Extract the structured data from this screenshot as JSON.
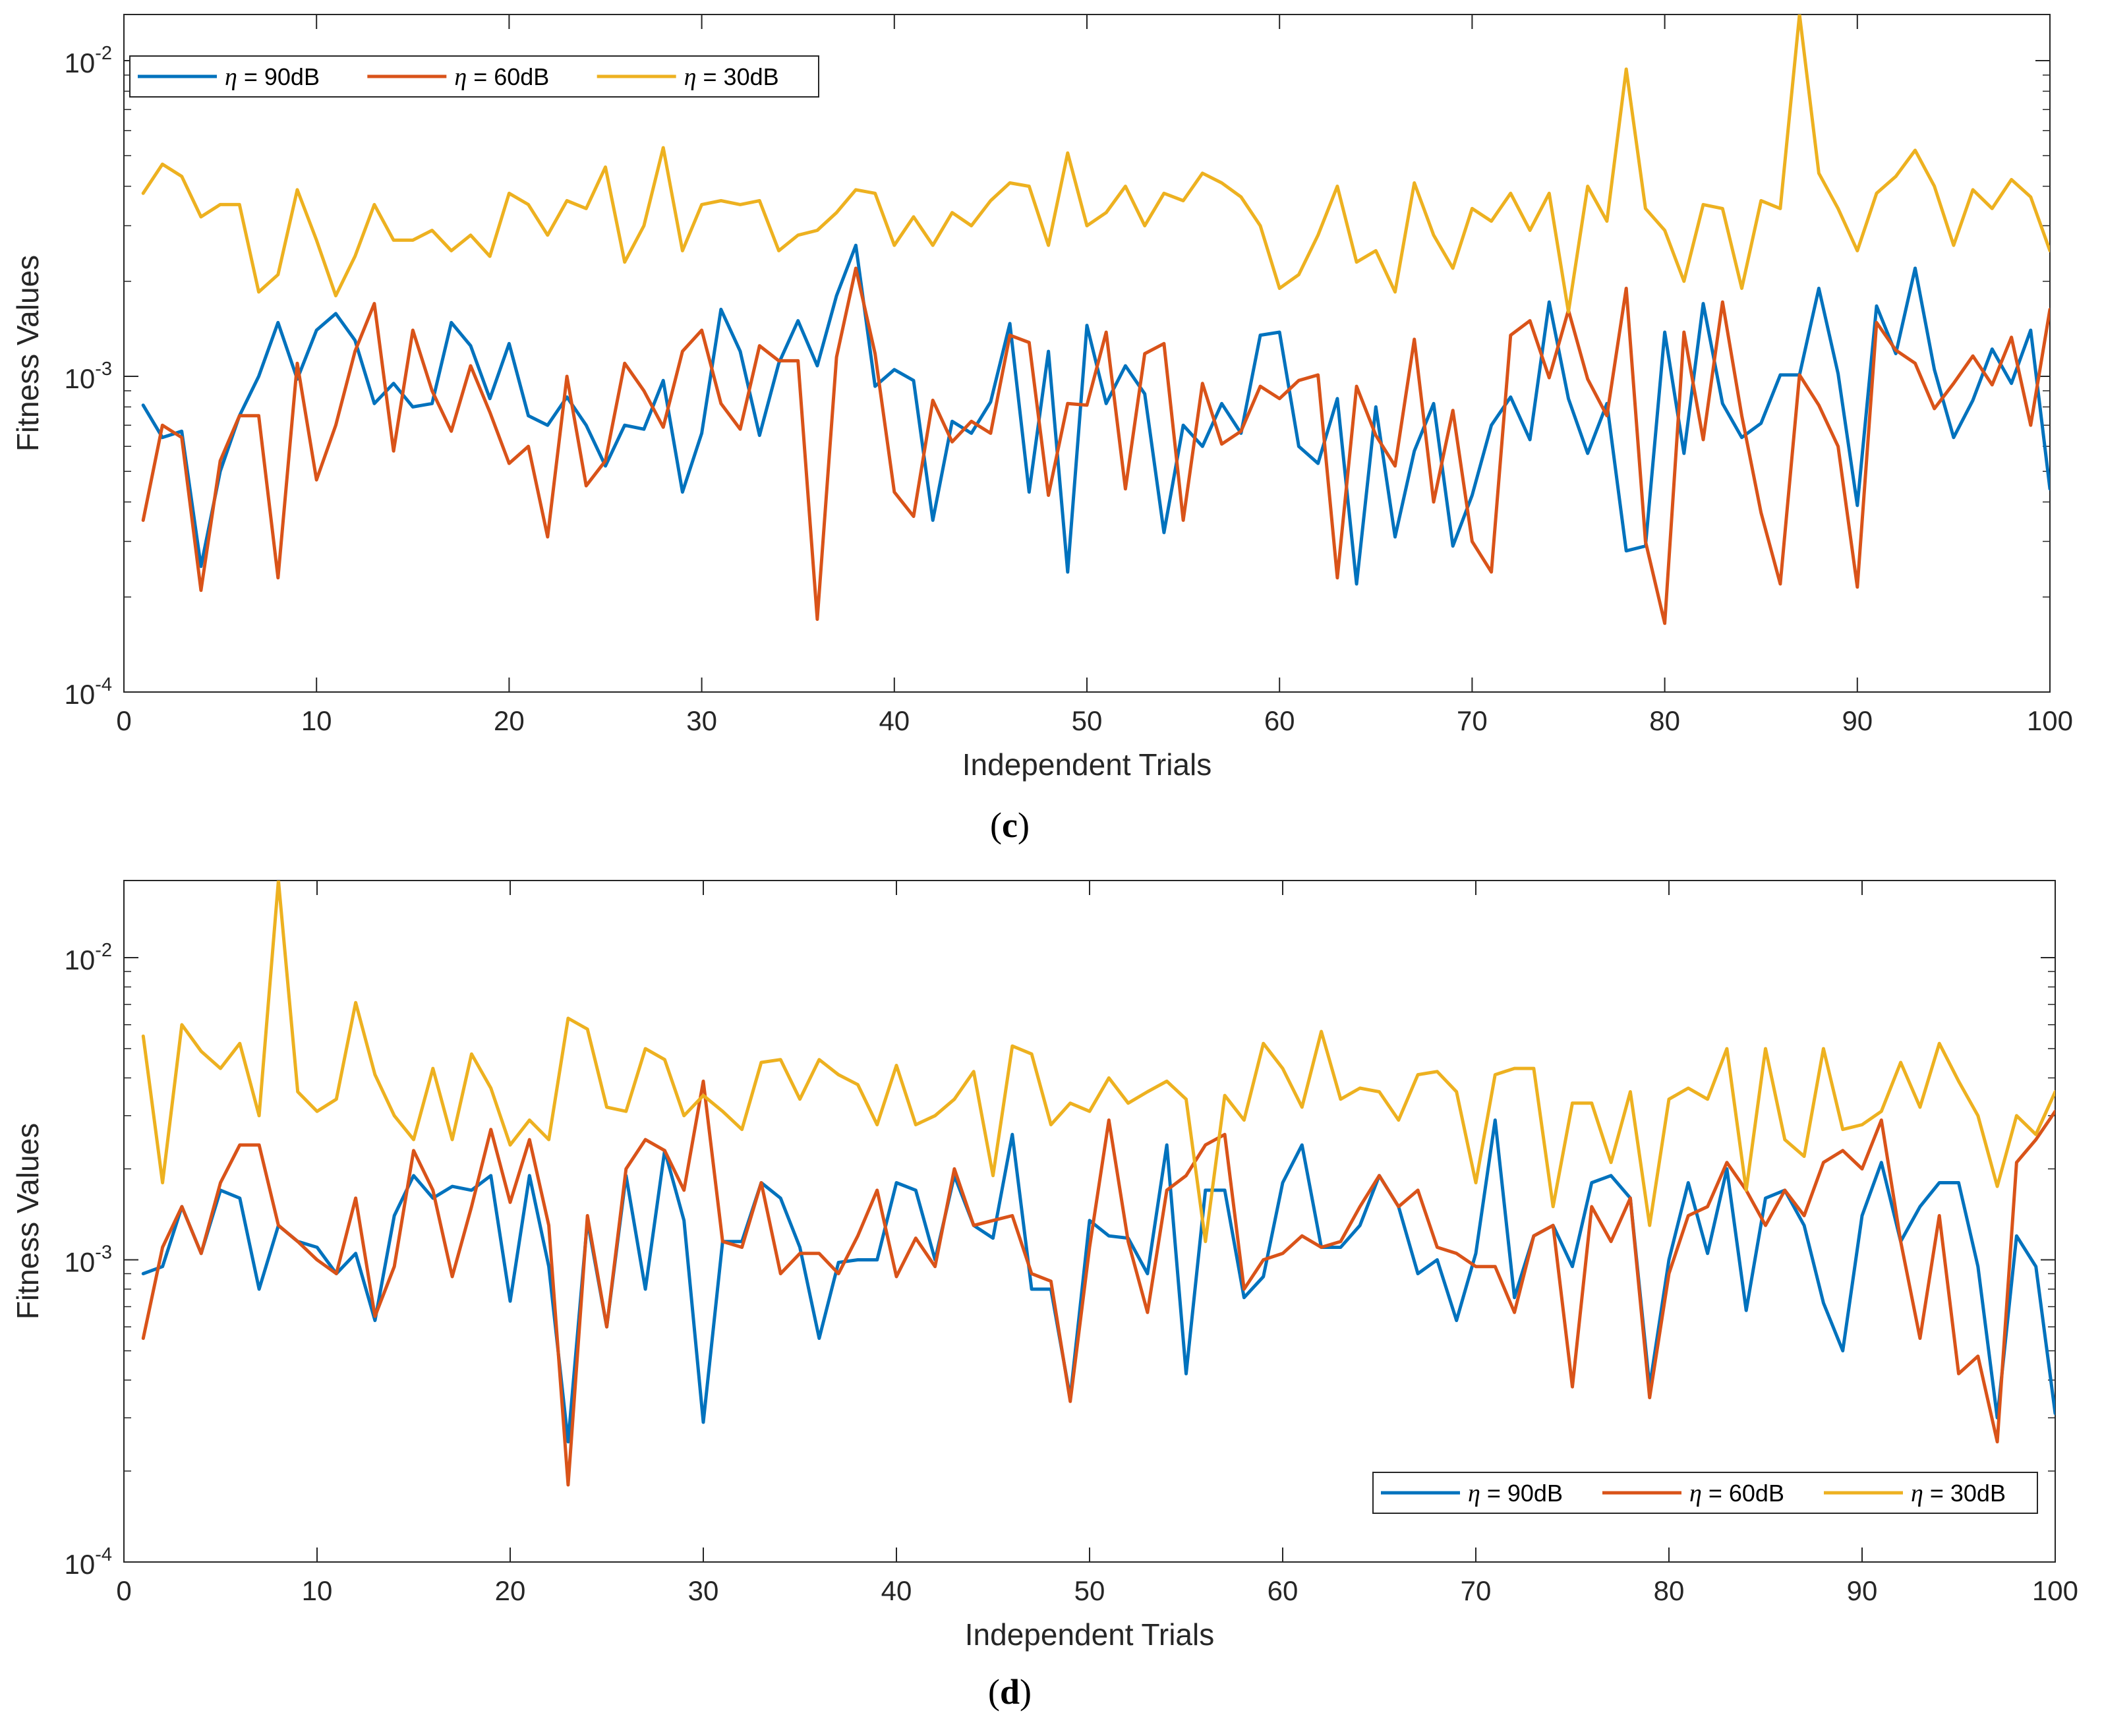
{
  "chart_data": [
    {
      "type": "line",
      "caption_letter": "c",
      "xlabel": "Independent Trials",
      "ylabel": "Fitness Values",
      "xlim": [
        0,
        100
      ],
      "xticks": [
        0,
        10,
        20,
        30,
        40,
        50,
        60,
        70,
        80,
        90,
        100
      ],
      "yscale": "log",
      "ylim": [
        0.0001,
        0.014
      ],
      "yticks": [
        {
          "base": "10",
          "exp": "-4",
          "value": 0.0001
        },
        {
          "base": "10",
          "exp": "-3",
          "value": 0.001
        },
        {
          "base": "10",
          "exp": "-2",
          "value": 0.01
        }
      ],
      "grid": false,
      "legend_position": "top-left",
      "series": [
        {
          "name": "η = 90dB",
          "symbol": "η",
          "label": " = 90dB",
          "color": "#0072BD",
          "values": [
            0.00081,
            0.00064,
            0.00067,
            0.00025,
            0.0005,
            0.00075,
            0.001,
            0.00148,
            0.00098,
            0.0014,
            0.00158,
            0.0013,
            0.00082,
            0.00095,
            0.0008,
            0.00082,
            0.00148,
            0.00125,
            0.00085,
            0.00127,
            0.00075,
            0.0007,
            0.00086,
            0.0007,
            0.00052,
            0.0007,
            0.00068,
            0.00097,
            0.00043,
            0.00066,
            0.00163,
            0.0012,
            0.00065,
            0.0011,
            0.0015,
            0.00108,
            0.0018,
            0.0026,
            0.00093,
            0.00105,
            0.00097,
            0.00035,
            0.00072,
            0.00066,
            0.00083,
            0.00147,
            0.00043,
            0.0012,
            0.00024,
            0.00145,
            0.00082,
            0.00108,
            0.00088,
            0.00032,
            0.0007,
            0.0006,
            0.00082,
            0.00066,
            0.00135,
            0.00138,
            0.0006,
            0.00053,
            0.00085,
            0.00022,
            0.0008,
            0.00031,
            0.00058,
            0.00082,
            0.00029,
            0.00042,
            0.0007,
            0.00086,
            0.00063,
            0.00172,
            0.00085,
            0.00057,
            0.00082,
            0.00028,
            0.00029,
            0.00138,
            0.00057,
            0.0017,
            0.00082,
            0.00064,
            0.00071,
            0.00101,
            0.00101,
            0.0019,
            0.00102,
            0.00039,
            0.00167,
            0.00118,
            0.0022,
            0.00105,
            0.00064,
            0.00084,
            0.00122,
            0.00095,
            0.0014,
            0.00044
          ]
        },
        {
          "name": "η = 60dB",
          "symbol": "η",
          "label": " = 60dB",
          "color": "#D95319",
          "values": [
            0.00035,
            0.0007,
            0.00064,
            0.00021,
            0.00054,
            0.00075,
            0.00075,
            0.00023,
            0.0011,
            0.00047,
            0.0007,
            0.0012,
            0.0017,
            0.00058,
            0.0014,
            0.0009,
            0.00067,
            0.00108,
            0.00077,
            0.00053,
            0.0006,
            0.00031,
            0.001,
            0.00045,
            0.00054,
            0.0011,
            0.0009,
            0.00069,
            0.0012,
            0.0014,
            0.00082,
            0.00068,
            0.00125,
            0.00112,
            0.00112,
            0.00017,
            0.00115,
            0.0022,
            0.00118,
            0.00043,
            0.00036,
            0.00084,
            0.00062,
            0.00072,
            0.00066,
            0.00135,
            0.00128,
            0.00042,
            0.00082,
            0.00081,
            0.00138,
            0.00044,
            0.00118,
            0.00127,
            0.00035,
            0.00095,
            0.00061,
            0.00067,
            0.00093,
            0.00085,
            0.00097,
            0.00101,
            0.00023,
            0.00093,
            0.00065,
            0.00052,
            0.00131,
            0.0004,
            0.00078,
            0.0003,
            0.00024,
            0.00135,
            0.0015,
            0.00099,
            0.00162,
            0.00098,
            0.00075,
            0.0019,
            0.0003,
            0.000165,
            0.00138,
            0.00063,
            0.00172,
            0.00075,
            0.00037,
            0.00022,
            0.00101,
            0.00081,
            0.0006,
            0.000215,
            0.00148,
            0.00121,
            0.0011,
            0.00079,
            0.00095,
            0.00116,
            0.00094,
            0.00133,
            0.0007,
            0.00163
          ]
        },
        {
          "name": "η = 30dB",
          "symbol": "η",
          "label": " = 30dB",
          "color": "#EDB120",
          "values": [
            0.0038,
            0.0047,
            0.0043,
            0.0032,
            0.0035,
            0.0035,
            0.00185,
            0.0021,
            0.0039,
            0.0027,
            0.0018,
            0.0024,
            0.0035,
            0.0027,
            0.0027,
            0.0029,
            0.0025,
            0.0028,
            0.0024,
            0.0038,
            0.0035,
            0.0028,
            0.0036,
            0.0034,
            0.0046,
            0.0023,
            0.003,
            0.0053,
            0.0025,
            0.0035,
            0.0036,
            0.0035,
            0.0036,
            0.0025,
            0.0028,
            0.0029,
            0.0033,
            0.0039,
            0.0038,
            0.0026,
            0.0032,
            0.0026,
            0.0033,
            0.003,
            0.0036,
            0.0041,
            0.004,
            0.0026,
            0.0051,
            0.003,
            0.0033,
            0.004,
            0.003,
            0.0038,
            0.0036,
            0.0044,
            0.0041,
            0.0037,
            0.003,
            0.0019,
            0.0021,
            0.0028,
            0.004,
            0.0023,
            0.0025,
            0.00185,
            0.0041,
            0.0028,
            0.0022,
            0.0034,
            0.0031,
            0.0038,
            0.0029,
            0.0038,
            0.0016,
            0.004,
            0.0031,
            0.0094,
            0.0034,
            0.0029,
            0.002,
            0.0035,
            0.0034,
            0.0019,
            0.0036,
            0.0034,
            0.014,
            0.0044,
            0.0034,
            0.0025,
            0.0038,
            0.0043,
            0.0052,
            0.004,
            0.0026,
            0.0039,
            0.0034,
            0.0042,
            0.0037,
            0.0025
          ]
        }
      ]
    },
    {
      "type": "line",
      "caption_letter": "d",
      "xlabel": "Independent Trials",
      "ylabel": "Fitness Values",
      "xlim": [
        0,
        100
      ],
      "xticks": [
        0,
        10,
        20,
        30,
        40,
        50,
        60,
        70,
        80,
        90,
        100
      ],
      "yscale": "log",
      "ylim": [
        0.0001,
        0.018
      ],
      "yticks": [
        {
          "base": "10",
          "exp": "-4",
          "value": 0.0001
        },
        {
          "base": "10",
          "exp": "-3",
          "value": 0.001
        },
        {
          "base": "10",
          "exp": "-2",
          "value": 0.01
        }
      ],
      "grid": false,
      "legend_position": "bottom-right",
      "series": [
        {
          "name": "η = 90dB",
          "symbol": "η",
          "label": " = 90dB",
          "color": "#0072BD",
          "values": [
            0.0009,
            0.00095,
            0.0015,
            0.00105,
            0.0017,
            0.0016,
            0.0008,
            0.0013,
            0.00115,
            0.0011,
            0.0009,
            0.00105,
            0.00063,
            0.0014,
            0.0019,
            0.0016,
            0.00175,
            0.0017,
            0.0019,
            0.00073,
            0.0019,
            0.00095,
            0.00025,
            0.00135,
            0.0006,
            0.0019,
            0.0008,
            0.0023,
            0.00135,
            0.00029,
            0.00115,
            0.00115,
            0.0018,
            0.0016,
            0.0011,
            0.00055,
            0.00098,
            0.001,
            0.001,
            0.0018,
            0.0017,
            0.001,
            0.0019,
            0.0013,
            0.00118,
            0.0026,
            0.0008,
            0.0008,
            0.00035,
            0.00135,
            0.0012,
            0.00118,
            0.0009,
            0.0024,
            0.00042,
            0.0017,
            0.0017,
            0.00075,
            0.00088,
            0.0018,
            0.0024,
            0.0011,
            0.0011,
            0.0013,
            0.0019,
            0.0015,
            0.0009,
            0.001,
            0.00063,
            0.00105,
            0.0029,
            0.00075,
            0.0012,
            0.0013,
            0.00095,
            0.0018,
            0.0019,
            0.0016,
            0.00038,
            0.001,
            0.0018,
            0.00105,
            0.002,
            0.00068,
            0.0016,
            0.0017,
            0.0013,
            0.00072,
            0.0005,
            0.0014,
            0.0021,
            0.00115,
            0.0015,
            0.0018,
            0.0018,
            0.00095,
            0.0003,
            0.0012,
            0.00095,
            0.00031
          ]
        },
        {
          "name": "η = 60dB",
          "symbol": "η",
          "label": " = 60dB",
          "color": "#D95319",
          "values": [
            0.00055,
            0.0011,
            0.0015,
            0.00105,
            0.0018,
            0.0024,
            0.0024,
            0.0013,
            0.00115,
            0.001,
            0.0009,
            0.0016,
            0.00065,
            0.00095,
            0.0023,
            0.0017,
            0.00088,
            0.0015,
            0.0027,
            0.00155,
            0.0025,
            0.0013,
            0.00018,
            0.0014,
            0.0006,
            0.002,
            0.0025,
            0.0023,
            0.0017,
            0.0039,
            0.00115,
            0.0011,
            0.0018,
            0.0009,
            0.00105,
            0.00105,
            0.0009,
            0.0012,
            0.0017,
            0.00088,
            0.00118,
            0.00095,
            0.002,
            0.0013,
            0.00135,
            0.0014,
            0.0009,
            0.00085,
            0.00034,
            0.0011,
            0.0029,
            0.00115,
            0.00067,
            0.0017,
            0.0019,
            0.0024,
            0.0026,
            0.0008,
            0.001,
            0.00105,
            0.0012,
            0.0011,
            0.00115,
            0.0015,
            0.0019,
            0.0015,
            0.0017,
            0.0011,
            0.00105,
            0.00095,
            0.00095,
            0.00067,
            0.0012,
            0.0013,
            0.00038,
            0.0015,
            0.00115,
            0.0016,
            0.00035,
            0.0009,
            0.0014,
            0.0015,
            0.0021,
            0.0017,
            0.0013,
            0.0017,
            0.0014,
            0.0021,
            0.0023,
            0.002,
            0.0029,
            0.00115,
            0.00055,
            0.0014,
            0.00042,
            0.00048,
            0.00025,
            0.0021,
            0.0025,
            0.0031
          ]
        },
        {
          "name": "η = 30dB",
          "symbol": "η",
          "label": " = 30dB",
          "color": "#EDB120",
          "values": [
            0.0055,
            0.0018,
            0.006,
            0.0049,
            0.0043,
            0.0052,
            0.003,
            0.018,
            0.0036,
            0.0031,
            0.0034,
            0.0071,
            0.0041,
            0.003,
            0.0025,
            0.0043,
            0.0025,
            0.0048,
            0.0037,
            0.0024,
            0.0029,
            0.0025,
            0.0063,
            0.0058,
            0.0032,
            0.0031,
            0.005,
            0.0046,
            0.003,
            0.0035,
            0.0031,
            0.0027,
            0.0045,
            0.0046,
            0.0034,
            0.0046,
            0.0041,
            0.0038,
            0.0028,
            0.0044,
            0.0028,
            0.003,
            0.0034,
            0.0042,
            0.0019,
            0.0051,
            0.0048,
            0.0028,
            0.0033,
            0.0031,
            0.004,
            0.0033,
            0.0036,
            0.0039,
            0.0034,
            0.00115,
            0.0035,
            0.0029,
            0.0052,
            0.0043,
            0.0032,
            0.0057,
            0.0034,
            0.0037,
            0.0036,
            0.0029,
            0.0041,
            0.0042,
            0.0036,
            0.0018,
            0.0041,
            0.0043,
            0.0043,
            0.0015,
            0.0033,
            0.0033,
            0.0021,
            0.0036,
            0.0013,
            0.0034,
            0.0037,
            0.0034,
            0.005,
            0.0017,
            0.005,
            0.0025,
            0.0022,
            0.005,
            0.0027,
            0.0028,
            0.0031,
            0.0045,
            0.0032,
            0.0052,
            0.0039,
            0.003,
            0.00175,
            0.003,
            0.0026,
            0.0036
          ]
        }
      ]
    }
  ]
}
